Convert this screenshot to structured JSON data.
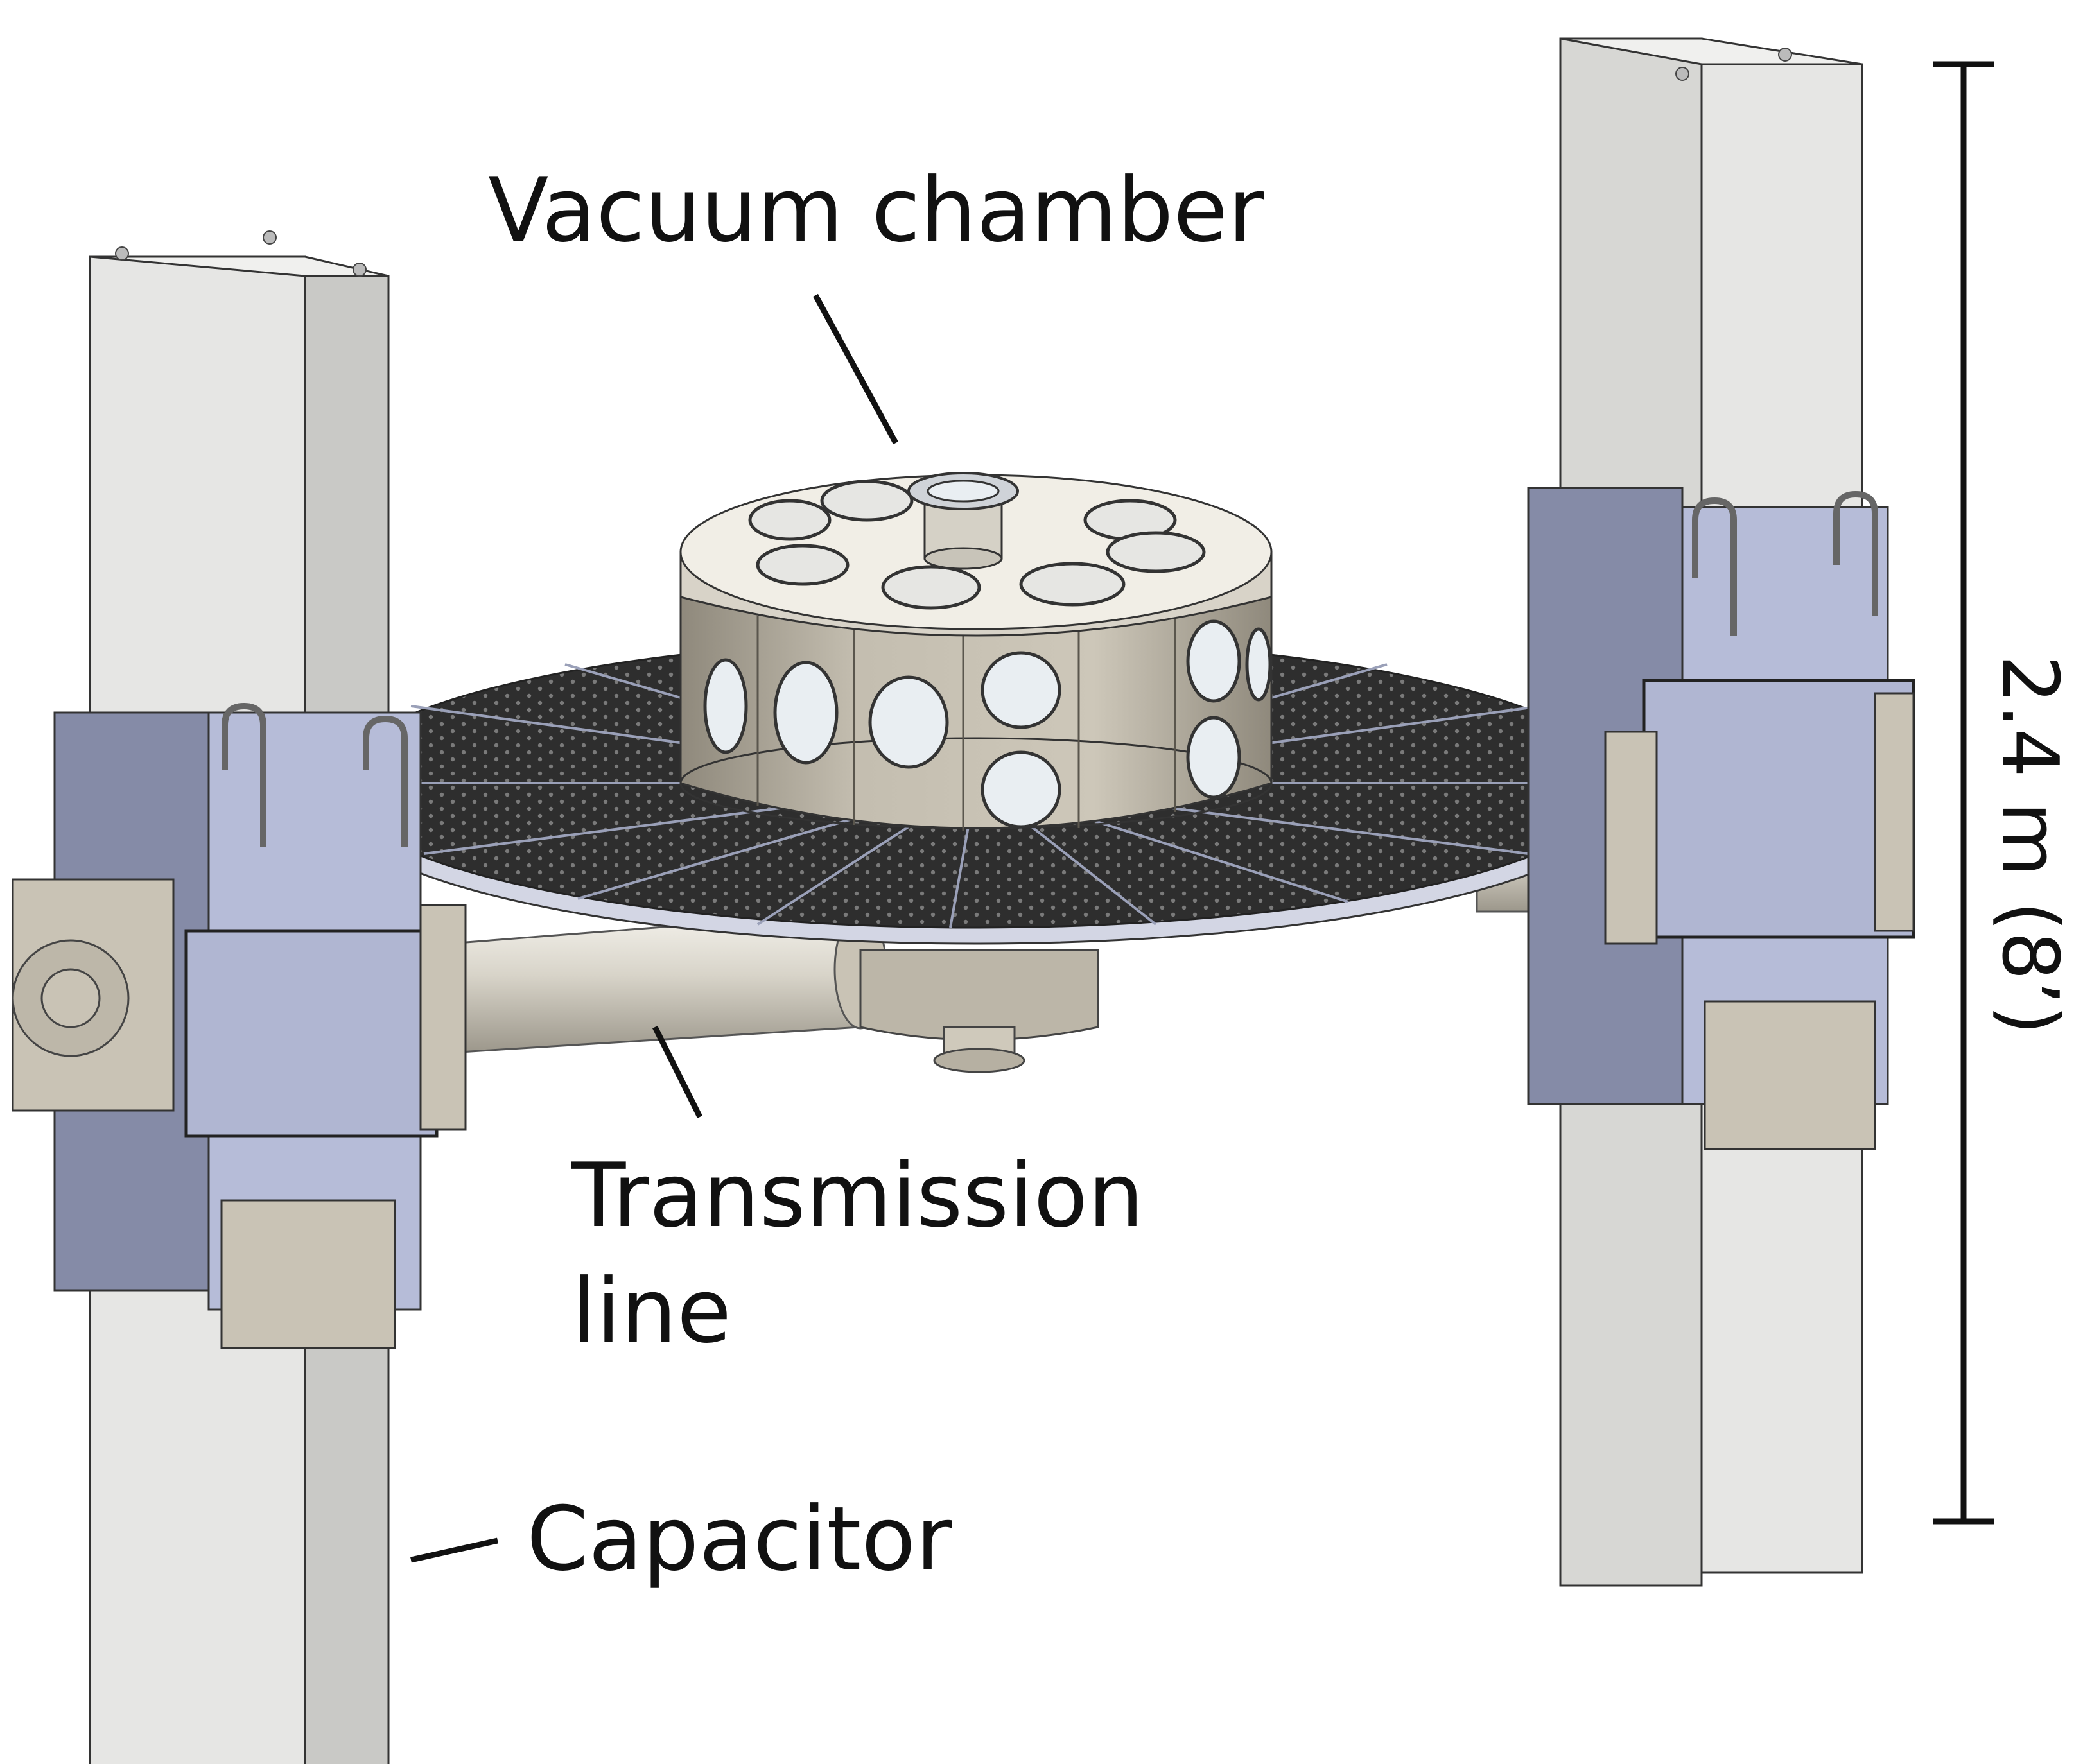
{
  "labels": {
    "vacuum_chamber": "Vacuum chamber",
    "transmission_line": [
      "Transmission",
      "line"
    ],
    "capacitor": "Capacitor",
    "scale": "2.4 m (8’)"
  },
  "colors": {
    "column": "#e6e6e4",
    "column_side": "#c9c9c6",
    "column_shadow": "#8d8d8b",
    "housing": "#b6bcd8",
    "housing_dark": "#858ba7",
    "steel": "#c9c3b5",
    "steel_dark": "#8e897d",
    "table": "#2e2e2e",
    "table_edge": "#d3d6e4",
    "chamber_wall": "#bcb5a6",
    "chamber_lid": "#f1eee6",
    "window": "#e9eef2",
    "ink": "#111111"
  }
}
